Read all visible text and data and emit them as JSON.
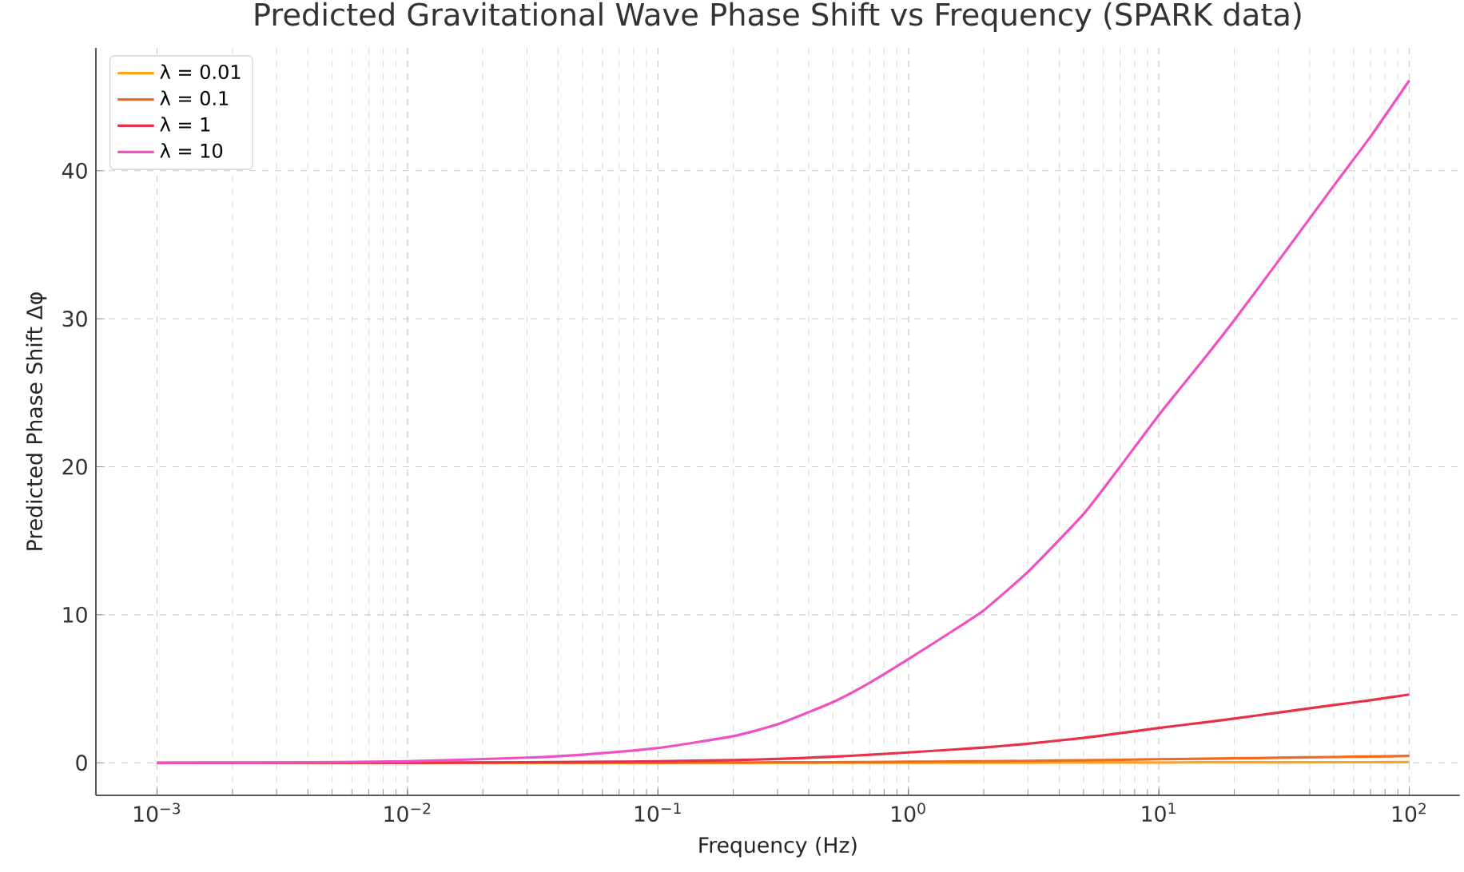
{
  "chart_data": {
    "type": "line",
    "title": "Predicted Gravitational Wave Phase Shift vs Frequency (SPARK data)",
    "xlabel": "Frequency (Hz)",
    "ylabel": "Predicted Phase Shift Δφ",
    "x": [
      0.001,
      0.003,
      0.01,
      0.03,
      0.05,
      0.1,
      0.2,
      0.3,
      0.5,
      0.7,
      1,
      1.5,
      2,
      3,
      5,
      7,
      10,
      15,
      20,
      30,
      50,
      70,
      100
    ],
    "series": [
      {
        "name": "λ = 0.01",
        "color": "#ffa31a",
        "values": [
          null,
          null,
          0,
          0,
          0,
          0,
          0,
          0,
          0,
          0.01,
          0.01,
          0.01,
          0.01,
          0.01,
          0.02,
          0.02,
          0.02,
          0.03,
          0.03,
          0.03,
          0.04,
          0.04,
          0.05
        ]
      },
      {
        "name": "λ = 0.1",
        "color": "#f26b1d",
        "values": [
          0,
          0,
          0,
          0,
          0.01,
          0.01,
          0.02,
          0.03,
          0.04,
          0.05,
          0.07,
          0.09,
          0.1,
          0.13,
          0.17,
          0.2,
          0.24,
          0.27,
          0.3,
          0.34,
          0.39,
          0.42,
          0.46
        ]
      },
      {
        "name": "λ = 1",
        "color": "#e8304a",
        "values": [
          0,
          0,
          0.01,
          0.04,
          0.06,
          0.1,
          0.18,
          0.26,
          0.41,
          0.54,
          0.7,
          0.89,
          1.03,
          1.29,
          1.68,
          2.0,
          2.35,
          2.72,
          2.99,
          3.39,
          3.9,
          4.23,
          4.61
        ]
      },
      {
        "name": "λ = 10",
        "color": "#f050c0",
        "values": [
          0,
          0.02,
          0.1,
          0.35,
          0.55,
          1.0,
          1.8,
          2.6,
          4.1,
          5.4,
          7.0,
          8.9,
          10.3,
          12.9,
          16.8,
          20.0,
          23.5,
          27.2,
          29.9,
          33.9,
          39.0,
          42.3,
          46.1
        ]
      }
    ],
    "log": "x",
    "xlim": [
      0.00057,
      159
    ],
    "ylim": [
      -2.2,
      48.3
    ],
    "xticks": [
      {
        "value": 0.001,
        "label": "10$^{−3}$"
      },
      {
        "value": 0.01,
        "label": "10$^{−2}$"
      },
      {
        "value": 0.1,
        "label": "10$^{−1}$"
      },
      {
        "value": 1,
        "label": "10$^{0}$"
      },
      {
        "value": 10,
        "label": "10$^{1}$"
      },
      {
        "value": 100,
        "label": "10$^{2}$"
      }
    ],
    "yticks": [
      0,
      10,
      20,
      30,
      40
    ],
    "grid": true,
    "legend": "top left",
    "marker": "none",
    "line_style": "solid"
  }
}
